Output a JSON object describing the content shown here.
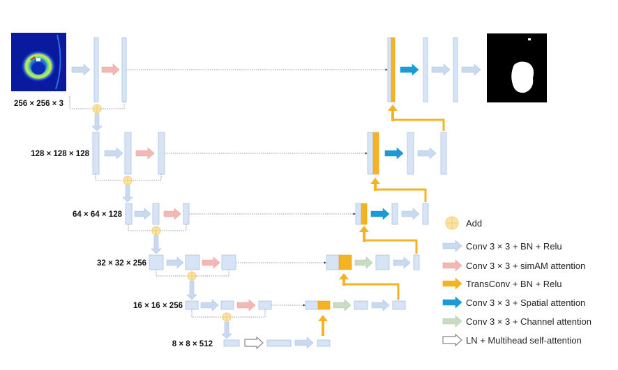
{
  "dims": {
    "level1": "256 × 256 × 3",
    "level2": "128 × 128 × 128",
    "level3": "64 × 64 × 128",
    "level4": "32 × 32 × 256",
    "level5": "16 × 16 × 256",
    "level6": "8 × 8 × 512"
  },
  "legend": [
    {
      "label": "Add",
      "icon": "add-circle-icon",
      "color": "#fbe3a6"
    },
    {
      "label": "Conv 3 × 3 + BN + Relu",
      "icon": "arrow-icon",
      "color": "#c9daf0"
    },
    {
      "label": "Conv 3 × 3 + simAM attention",
      "icon": "arrow-icon",
      "color": "#f2b8b4"
    },
    {
      "label": "TransConv + BN + Relu",
      "icon": "arrow-icon",
      "color": "#f5b324"
    },
    {
      "label": "Conv 3 × 3 + Spatial attention",
      "icon": "arrow-icon",
      "color": "#1a9ad6"
    },
    {
      "label": "Conv 3 × 3 + Channel attention",
      "icon": "arrow-icon",
      "color": "#c7dcc2"
    },
    {
      "label": "LN + Multihead self-attention",
      "icon": "arrow-icon",
      "color": "#ffffff"
    }
  ]
}
